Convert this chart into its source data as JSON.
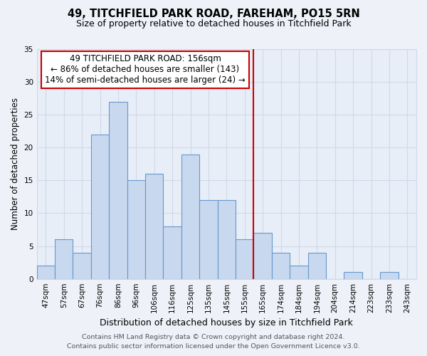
{
  "title1": "49, TITCHFIELD PARK ROAD, FAREHAM, PO15 5RN",
  "title2": "Size of property relative to detached houses in Titchfield Park",
  "xlabel": "Distribution of detached houses by size in Titchfield Park",
  "ylabel": "Number of detached properties",
  "bar_labels": [
    "47sqm",
    "57sqm",
    "67sqm",
    "76sqm",
    "86sqm",
    "96sqm",
    "106sqm",
    "116sqm",
    "125sqm",
    "135sqm",
    "145sqm",
    "155sqm",
    "165sqm",
    "174sqm",
    "184sqm",
    "194sqm",
    "204sqm",
    "214sqm",
    "223sqm",
    "233sqm",
    "243sqm"
  ],
  "bar_values": [
    2,
    6,
    4,
    22,
    27,
    15,
    16,
    8,
    19,
    12,
    12,
    6,
    7,
    4,
    2,
    4,
    0,
    1,
    0,
    1,
    0
  ],
  "bar_color": "#c8d8ee",
  "bar_edge_color": "#6699cc",
  "vline_x_index": 11.5,
  "vline_color": "#cc0000",
  "ylim": [
    0,
    35
  ],
  "yticks": [
    0,
    5,
    10,
    15,
    20,
    25,
    30,
    35
  ],
  "annotation_title": "49 TITCHFIELD PARK ROAD: 156sqm",
  "annotation_line1": "← 86% of detached houses are smaller (143)",
  "annotation_line2": "14% of semi-detached houses are larger (24) →",
  "annotation_box_color": "#ffffff",
  "annotation_box_edge_color": "#cc0000",
  "footer1": "Contains HM Land Registry data © Crown copyright and database right 2024.",
  "footer2": "Contains public sector information licensed under the Open Government Licence v3.0.",
  "bg_color": "#eef2f8",
  "plot_bg_color": "#e8eef8",
  "grid_color": "#d0d8e8",
  "title1_fontsize": 10.5,
  "title2_fontsize": 9,
  "xlabel_fontsize": 9,
  "ylabel_fontsize": 8.5,
  "tick_fontsize": 7.5,
  "annotation_fontsize": 8.5,
  "footer_fontsize": 6.8
}
